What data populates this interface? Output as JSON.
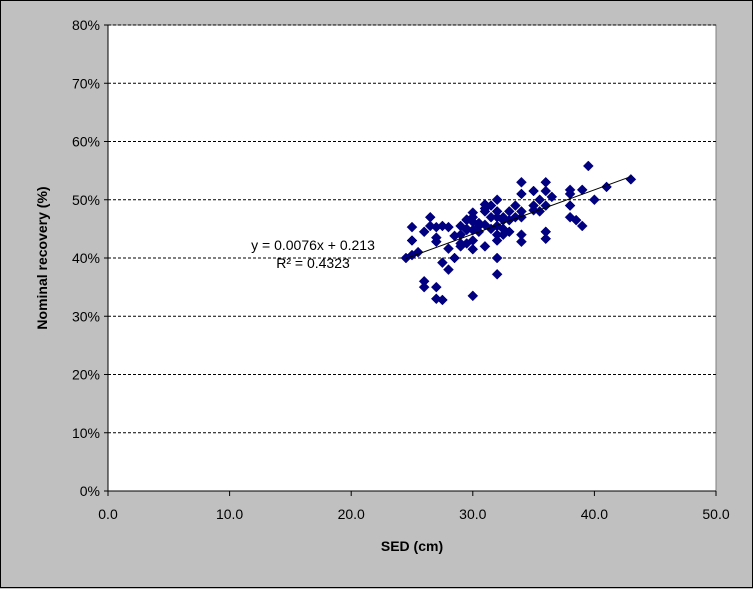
{
  "chart_data": {
    "type": "scatter",
    "title": "",
    "xlabel": "SED (cm)",
    "ylabel": "Nominal recovery (%)",
    "xlim": [
      0,
      50
    ],
    "ylim": [
      0,
      0.8
    ],
    "x_ticks": [
      "0.0",
      "10.0",
      "20.0",
      "30.0",
      "40.0",
      "50.0"
    ],
    "y_ticks": [
      "0%",
      "10%",
      "20%",
      "30%",
      "40%",
      "50%",
      "60%",
      "70%",
      "80%"
    ],
    "grid": "horizontal dashed",
    "marker": "diamond",
    "marker_color": "#000080",
    "series": [
      {
        "x": [
          24.5,
          25.0,
          25.0,
          25.0,
          25.5,
          26.0,
          26.0,
          26.0,
          26.5,
          26.5,
          27.0,
          27.0,
          27.0,
          27.0,
          27.0,
          27.5,
          27.5,
          27.5,
          28.0,
          28.0,
          28.0,
          28.5,
          28.5,
          29.0,
          29.0,
          29.0,
          29.0,
          29.5,
          29.5,
          29.5,
          29.5,
          29.5,
          30.0,
          30.0,
          30.0,
          30.0,
          30.0,
          30.0,
          30.0,
          30.5,
          30.5,
          31.0,
          31.0,
          31.0,
          31.0,
          31.5,
          31.5,
          31.5,
          32.0,
          32.0,
          32.0,
          32.0,
          32.0,
          32.0,
          32.0,
          32.0,
          32.5,
          32.5,
          32.5,
          33.0,
          33.0,
          33.0,
          33.5,
          33.5,
          34.0,
          34.0,
          34.0,
          34.0,
          34.0,
          34.0,
          35.0,
          35.0,
          35.0,
          35.5,
          35.5,
          36.0,
          36.0,
          36.0,
          36.0,
          36.0,
          36.5,
          38.0,
          38.0,
          38.0,
          38.0,
          38.5,
          39.0,
          39.0,
          39.5,
          40.0,
          41.0,
          43.0,
          31.0,
          32.5,
          30.5
        ],
        "y": [
          0.4,
          0.453,
          0.43,
          0.405,
          0.41,
          0.445,
          0.36,
          0.35,
          0.47,
          0.455,
          0.453,
          0.435,
          0.428,
          0.35,
          0.33,
          0.392,
          0.455,
          0.328,
          0.38,
          0.416,
          0.453,
          0.4,
          0.438,
          0.455,
          0.44,
          0.425,
          0.42,
          0.466,
          0.45,
          0.425,
          0.465,
          0.448,
          0.478,
          0.47,
          0.462,
          0.448,
          0.43,
          0.415,
          0.335,
          0.46,
          0.445,
          0.492,
          0.485,
          0.457,
          0.42,
          0.49,
          0.47,
          0.45,
          0.5,
          0.48,
          0.47,
          0.455,
          0.44,
          0.43,
          0.4,
          0.372,
          0.465,
          0.45,
          0.44,
          0.48,
          0.465,
          0.445,
          0.49,
          0.47,
          0.53,
          0.51,
          0.48,
          0.47,
          0.44,
          0.428,
          0.515,
          0.49,
          0.482,
          0.5,
          0.48,
          0.53,
          0.515,
          0.49,
          0.445,
          0.433,
          0.505,
          0.517,
          0.51,
          0.49,
          0.47,
          0.465,
          0.517,
          0.455,
          0.558,
          0.5,
          0.522,
          0.535,
          0.48,
          0.47,
          0.455
        ]
      }
    ],
    "trendline": {
      "slope": 0.0076,
      "intercept": 0.213,
      "x_range": [
        24.5,
        43.0
      ],
      "equation": "y = 0.0076x + 0.213",
      "r_squared": "R² = 0.4323"
    }
  },
  "colors": {
    "background": "#c0c0c0",
    "plot_area": "#ffffff",
    "marker": "#000080",
    "grid": "#000000"
  }
}
